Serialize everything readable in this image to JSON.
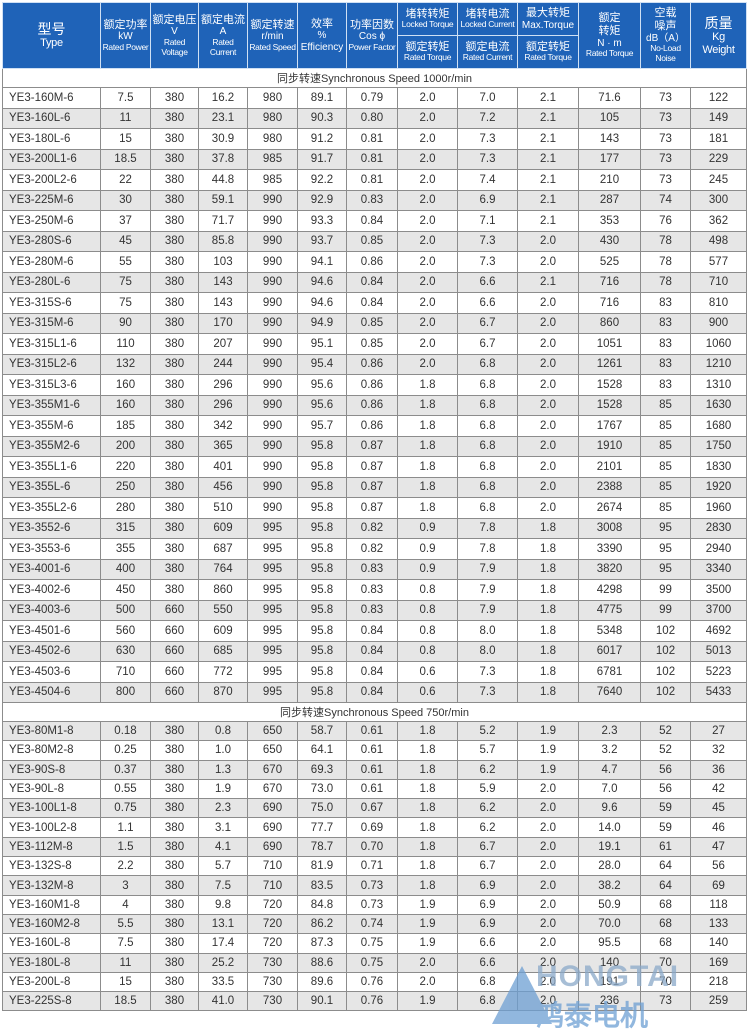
{
  "header": {
    "type": {
      "cn": "型号",
      "en": "Type"
    },
    "power": {
      "cn": "额定功率",
      "unit": "kW",
      "en": "Rated Power"
    },
    "voltage": {
      "cn": "额定电压",
      "unit": "V",
      "en": "Rated Voltage"
    },
    "current": {
      "cn": "额定电流",
      "unit": "A",
      "en": "Rated Current"
    },
    "speed": {
      "cn": "额定转速",
      "unit": "r/min",
      "en": "Rated Speed"
    },
    "efficiency": {
      "cn": "效率",
      "unit": "%",
      "en": "Efficiency"
    },
    "pf": {
      "cn": "功率因数",
      "unit": "Cos ϕ",
      "en": "Power Factor"
    },
    "locked_torque": {
      "cn_top": "堵转转矩",
      "en_top": "Locked Torque",
      "cn_bot": "额定转矩",
      "en_bot": "Rated Torque"
    },
    "locked_current": {
      "cn_top": "堵转电流",
      "en_top": "Locked Current",
      "cn_bot": "额定电流",
      "en_bot": "Rated Current"
    },
    "max_torque": {
      "cn_top": "最大转矩",
      "en_top": "Max.Torque",
      "cn_bot": "额定转矩",
      "en_bot": "Rated Torque"
    },
    "rated_torque": {
      "cn1": "额定",
      "cn2": "转矩",
      "unit": "N · m",
      "en": "Rated Torque"
    },
    "noise": {
      "cn1": "空载",
      "cn2": "噪声",
      "unit": "dB（A）",
      "en": "No-Load Noise"
    },
    "weight": {
      "cn": "质量",
      "unit": "Kg",
      "en": "Weight"
    }
  },
  "sections": [
    {
      "title": "同步转速Synchronous Speed  1000r/min",
      "rows": [
        [
          "YE3-160M-6",
          "7.5",
          "380",
          "16.2",
          "980",
          "89.1",
          "0.79",
          "2.0",
          "7.0",
          "2.1",
          "71.6",
          "73",
          "122"
        ],
        [
          "YE3-160L-6",
          "11",
          "380",
          "23.1",
          "980",
          "90.3",
          "0.80",
          "2.0",
          "7.2",
          "2.1",
          "105",
          "73",
          "149"
        ],
        [
          "YE3-180L-6",
          "15",
          "380",
          "30.9",
          "980",
          "91.2",
          "0.81",
          "2.0",
          "7.3",
          "2.1",
          "143",
          "73",
          "181"
        ],
        [
          "YE3-200L1-6",
          "18.5",
          "380",
          "37.8",
          "985",
          "91.7",
          "0.81",
          "2.0",
          "7.3",
          "2.1",
          "177",
          "73",
          "229"
        ],
        [
          "YE3-200L2-6",
          "22",
          "380",
          "44.8",
          "985",
          "92.2",
          "0.81",
          "2.0",
          "7.4",
          "2.1",
          "210",
          "73",
          "245"
        ],
        [
          "YE3-225M-6",
          "30",
          "380",
          "59.1",
          "990",
          "92.9",
          "0.83",
          "2.0",
          "6.9",
          "2.1",
          "287",
          "74",
          "300"
        ],
        [
          "YE3-250M-6",
          "37",
          "380",
          "71.7",
          "990",
          "93.3",
          "0.84",
          "2.0",
          "7.1",
          "2.1",
          "353",
          "76",
          "362"
        ],
        [
          "YE3-280S-6",
          "45",
          "380",
          "85.8",
          "990",
          "93.7",
          "0.85",
          "2.0",
          "7.3",
          "2.0",
          "430",
          "78",
          "498"
        ],
        [
          "YE3-280M-6",
          "55",
          "380",
          "103",
          "990",
          "94.1",
          "0.86",
          "2.0",
          "7.3",
          "2.0",
          "525",
          "78",
          "577"
        ],
        [
          "YE3-280L-6",
          "75",
          "380",
          "143",
          "990",
          "94.6",
          "0.84",
          "2.0",
          "6.6",
          "2.1",
          "716",
          "78",
          "710"
        ],
        [
          "YE3-315S-6",
          "75",
          "380",
          "143",
          "990",
          "94.6",
          "0.84",
          "2.0",
          "6.6",
          "2.0",
          "716",
          "83",
          "810"
        ],
        [
          "YE3-315M-6",
          "90",
          "380",
          "170",
          "990",
          "94.9",
          "0.85",
          "2.0",
          "6.7",
          "2.0",
          "860",
          "83",
          "900"
        ],
        [
          "YE3-315L1-6",
          "110",
          "380",
          "207",
          "990",
          "95.1",
          "0.85",
          "2.0",
          "6.7",
          "2.0",
          "1051",
          "83",
          "1060"
        ],
        [
          "YE3-315L2-6",
          "132",
          "380",
          "244",
          "990",
          "95.4",
          "0.86",
          "2.0",
          "6.8",
          "2.0",
          "1261",
          "83",
          "1210"
        ],
        [
          "YE3-315L3-6",
          "160",
          "380",
          "296",
          "990",
          "95.6",
          "0.86",
          "1.8",
          "6.8",
          "2.0",
          "1528",
          "83",
          "1310"
        ],
        [
          "YE3-355M1-6",
          "160",
          "380",
          "296",
          "990",
          "95.6",
          "0.86",
          "1.8",
          "6.8",
          "2.0",
          "1528",
          "85",
          "1630"
        ],
        [
          "YE3-355M-6",
          "185",
          "380",
          "342",
          "990",
          "95.7",
          "0.86",
          "1.8",
          "6.8",
          "2.0",
          "1767",
          "85",
          "1680"
        ],
        [
          "YE3-355M2-6",
          "200",
          "380",
          "365",
          "990",
          "95.8",
          "0.87",
          "1.8",
          "6.8",
          "2.0",
          "1910",
          "85",
          "1750"
        ],
        [
          "YE3-355L1-6",
          "220",
          "380",
          "401",
          "990",
          "95.8",
          "0.87",
          "1.8",
          "6.8",
          "2.0",
          "2101",
          "85",
          "1830"
        ],
        [
          "YE3-355L-6",
          "250",
          "380",
          "456",
          "990",
          "95.8",
          "0.87",
          "1.8",
          "6.8",
          "2.0",
          "2388",
          "85",
          "1920"
        ],
        [
          "YE3-355L2-6",
          "280",
          "380",
          "510",
          "990",
          "95.8",
          "0.87",
          "1.8",
          "6.8",
          "2.0",
          "2674",
          "85",
          "1960"
        ],
        [
          "YE3-3552-6",
          "315",
          "380",
          "609",
          "995",
          "95.8",
          "0.82",
          "0.9",
          "7.8",
          "1.8",
          "3008",
          "95",
          "2830"
        ],
        [
          "YE3-3553-6",
          "355",
          "380",
          "687",
          "995",
          "95.8",
          "0.82",
          "0.9",
          "7.8",
          "1.8",
          "3390",
          "95",
          "2940"
        ],
        [
          "YE3-4001-6",
          "400",
          "380",
          "764",
          "995",
          "95.8",
          "0.83",
          "0.9",
          "7.9",
          "1.8",
          "3820",
          "95",
          "3340"
        ],
        [
          "YE3-4002-6",
          "450",
          "380",
          "860",
          "995",
          "95.8",
          "0.83",
          "0.8",
          "7.9",
          "1.8",
          "4298",
          "99",
          "3500"
        ],
        [
          "YE3-4003-6",
          "500",
          "660",
          "550",
          "995",
          "95.8",
          "0.83",
          "0.8",
          "7.9",
          "1.8",
          "4775",
          "99",
          "3700"
        ],
        [
          "YE3-4501-6",
          "560",
          "660",
          "609",
          "995",
          "95.8",
          "0.84",
          "0.8",
          "8.0",
          "1.8",
          "5348",
          "102",
          "4692"
        ],
        [
          "YE3-4502-6",
          "630",
          "660",
          "685",
          "995",
          "95.8",
          "0.84",
          "0.8",
          "8.0",
          "1.8",
          "6017",
          "102",
          "5013"
        ],
        [
          "YE3-4503-6",
          "710",
          "660",
          "772",
          "995",
          "95.8",
          "0.84",
          "0.6",
          "7.3",
          "1.8",
          "6781",
          "102",
          "5223"
        ],
        [
          "YE3-4504-6",
          "800",
          "660",
          "870",
          "995",
          "95.8",
          "0.84",
          "0.6",
          "7.3",
          "1.8",
          "7640",
          "102",
          "5433"
        ]
      ]
    },
    {
      "title": "同步转速Synchronous Speed  750r/min",
      "rows": [
        [
          "YE3-80M1-8",
          "0.18",
          "380",
          "0.8",
          "650",
          "58.7",
          "0.61",
          "1.8",
          "5.2",
          "1.9",
          "2.3",
          "52",
          "27"
        ],
        [
          "YE3-80M2-8",
          "0.25",
          "380",
          "1.0",
          "650",
          "64.1",
          "0.61",
          "1.8",
          "5.7",
          "1.9",
          "3.2",
          "52",
          "32"
        ],
        [
          "YE3-90S-8",
          "0.37",
          "380",
          "1.3",
          "670",
          "69.3",
          "0.61",
          "1.8",
          "6.2",
          "1.9",
          "4.7",
          "56",
          "36"
        ],
        [
          "YE3-90L-8",
          "0.55",
          "380",
          "1.9",
          "670",
          "73.0",
          "0.61",
          "1.8",
          "5.9",
          "2.0",
          "7.0",
          "56",
          "42"
        ],
        [
          "YE3-100L1-8",
          "0.75",
          "380",
          "2.3",
          "690",
          "75.0",
          "0.67",
          "1.8",
          "6.2",
          "2.0",
          "9.6",
          "59",
          "45"
        ],
        [
          "YE3-100L2-8",
          "1.1",
          "380",
          "3.1",
          "690",
          "77.7",
          "0.69",
          "1.8",
          "6.2",
          "2.0",
          "14.0",
          "59",
          "46"
        ],
        [
          "YE3-112M-8",
          "1.5",
          "380",
          "4.1",
          "690",
          "78.7",
          "0.70",
          "1.8",
          "6.7",
          "2.0",
          "19.1",
          "61",
          "47"
        ],
        [
          "YE3-132S-8",
          "2.2",
          "380",
          "5.7",
          "710",
          "81.9",
          "0.71",
          "1.8",
          "6.7",
          "2.0",
          "28.0",
          "64",
          "56"
        ],
        [
          "YE3-132M-8",
          "3",
          "380",
          "7.5",
          "710",
          "83.5",
          "0.73",
          "1.8",
          "6.9",
          "2.0",
          "38.2",
          "64",
          "69"
        ],
        [
          "YE3-160M1-8",
          "4",
          "380",
          "9.8",
          "720",
          "84.8",
          "0.73",
          "1.9",
          "6.9",
          "2.0",
          "50.9",
          "68",
          "118"
        ],
        [
          "YE3-160M2-8",
          "5.5",
          "380",
          "13.1",
          "720",
          "86.2",
          "0.74",
          "1.9",
          "6.9",
          "2.0",
          "70.0",
          "68",
          "133"
        ],
        [
          "YE3-160L-8",
          "7.5",
          "380",
          "17.4",
          "720",
          "87.3",
          "0.75",
          "1.9",
          "6.6",
          "2.0",
          "95.5",
          "68",
          "140"
        ],
        [
          "YE3-180L-8",
          "11",
          "380",
          "25.2",
          "730",
          "88.6",
          "0.75",
          "2.0",
          "6.6",
          "2.0",
          "140",
          "70",
          "169"
        ],
        [
          "YE3-200L-8",
          "15",
          "380",
          "33.5",
          "730",
          "89.6",
          "0.76",
          "2.0",
          "6.8",
          "2.0",
          "191",
          "70",
          "218"
        ],
        [
          "YE3-225S-8",
          "18.5",
          "380",
          "41.0",
          "730",
          "90.1",
          "0.76",
          "1.9",
          "6.8",
          "2.0",
          "236",
          "73",
          "259"
        ]
      ]
    }
  ],
  "watermark": {
    "en": "HONGTAI",
    "cn": "鸿泰电机"
  },
  "colors": {
    "header_bg": "#1f63b8",
    "stripe": "#e6e6e6"
  }
}
